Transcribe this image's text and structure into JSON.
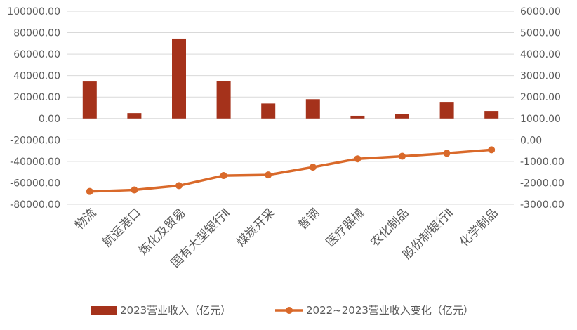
{
  "chart_data": {
    "type": "bar+line",
    "categories": [
      "物流",
      "航运港口",
      "炼化及贸易",
      "国有大型银行Ⅱ",
      "煤炭开采",
      "普钢",
      "医疗器械",
      "农化制品",
      "股份制银行Ⅱ",
      "化学制品"
    ],
    "series": [
      {
        "name": "2023营业收入（亿元）",
        "type": "bar",
        "axis": "left",
        "values": [
          34500,
          5000,
          74500,
          35000,
          14000,
          18000,
          2500,
          4000,
          15500,
          7000
        ]
      },
      {
        "name": "2022~2023营业收入变化（亿元）",
        "type": "line",
        "axis": "right",
        "values": [
          -2400,
          -2330,
          -2130,
          -1660,
          -1630,
          -1270,
          -880,
          -760,
          -620,
          -460
        ]
      }
    ],
    "left_axis": {
      "ylim": [
        -80000,
        100000
      ],
      "ticks": [
        "100000.00",
        "80000.00",
        "60000.00",
        "40000.00",
        "20000.00",
        "0.00",
        "-20000.00",
        "-40000.00",
        "-60000.00",
        "-80000.00"
      ]
    },
    "right_axis": {
      "ylim": [
        -3000,
        6000
      ],
      "ticks": [
        "6000.00",
        "5000.00",
        "4000.00",
        "3000.00",
        "2000.00",
        "1000.00",
        "0.00",
        "-1000.00",
        "-2000.00",
        "-3000.00"
      ]
    },
    "grid": true,
    "legend_position": "bottom",
    "colors": {
      "bar": "#a5321b",
      "line": "#d9692a",
      "grid": "#d9d9d9",
      "text": "#595959"
    }
  }
}
